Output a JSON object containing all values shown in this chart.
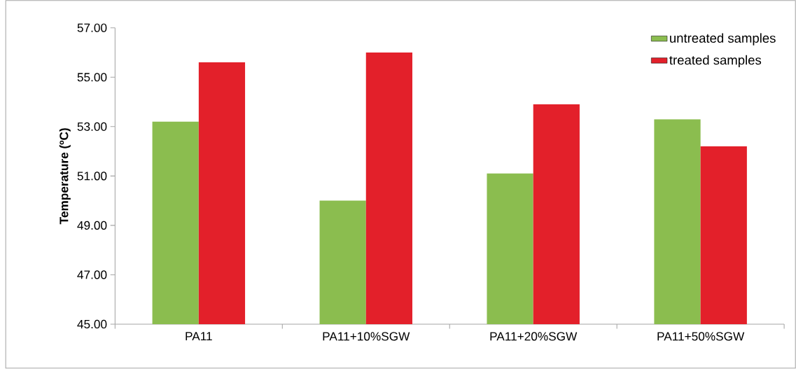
{
  "chart_data": {
    "type": "bar",
    "ylabel": "Temperature (ºC)",
    "categories": [
      "PA11",
      "PA11+10%SGW",
      "PA11+20%SGW",
      "PA11+50%SGW"
    ],
    "series": [
      {
        "name": "untreated samples",
        "color": "#8bbd4f",
        "values": [
          53.2,
          50.0,
          51.1,
          53.3
        ]
      },
      {
        "name": "treated samples",
        "color": "#e3202a",
        "values": [
          55.6,
          56.0,
          53.9,
          52.2
        ]
      }
    ],
    "ylim": [
      45,
      57
    ],
    "yticks": [
      {
        "value": 45,
        "label": "45.00"
      },
      {
        "value": 47,
        "label": "47.00"
      },
      {
        "value": 49,
        "label": "49.00"
      },
      {
        "value": 51,
        "label": "51.00"
      },
      {
        "value": 53,
        "label": "53.00"
      },
      {
        "value": 55,
        "label": "55.00"
      },
      {
        "value": 57,
        "label": "57.00"
      }
    ],
    "legend": "top right",
    "grid": false
  }
}
